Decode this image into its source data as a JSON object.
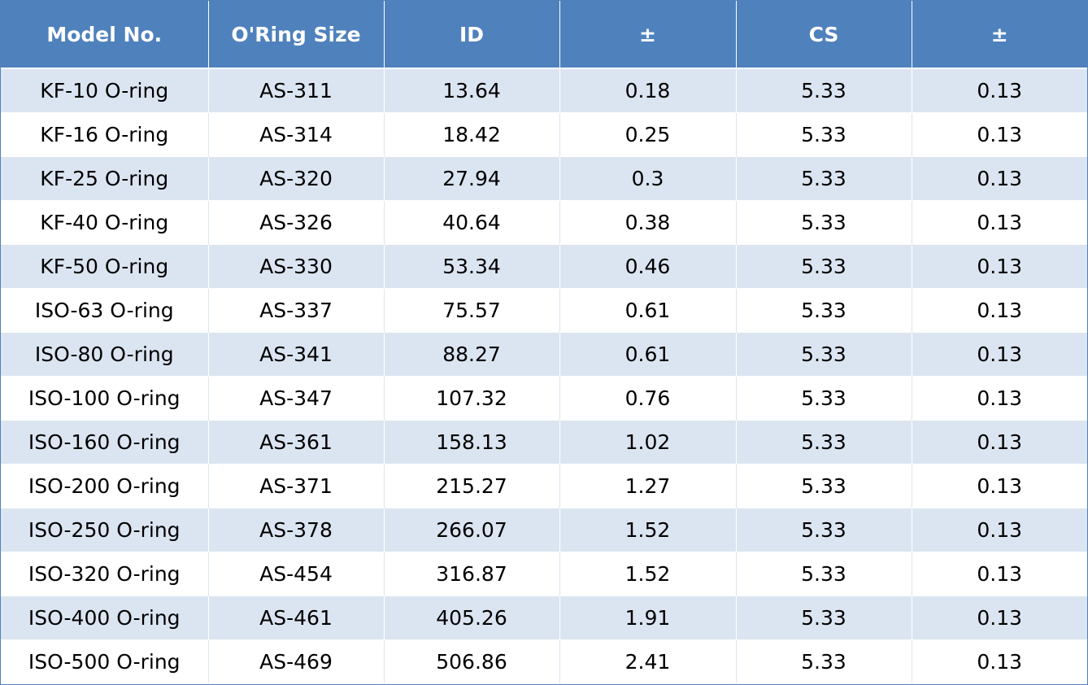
{
  "table": {
    "headers": [
      "Model No.",
      "O'Ring Size",
      "ID",
      "±",
      "CS",
      "±"
    ],
    "rows": [
      [
        "KF-10 O-ring",
        "AS-311",
        "13.64",
        "0.18",
        "5.33",
        "0.13"
      ],
      [
        "KF-16 O-ring",
        "AS-314",
        "18.42",
        "0.25",
        "5.33",
        "0.13"
      ],
      [
        "KF-25 O-ring",
        "AS-320",
        "27.94",
        "0.3",
        "5.33",
        "0.13"
      ],
      [
        "KF-40 O-ring",
        "AS-326",
        "40.64",
        "0.38",
        "5.33",
        "0.13"
      ],
      [
        "KF-50 O-ring",
        "AS-330",
        "53.34",
        "0.46",
        "5.33",
        "0.13"
      ],
      [
        "ISO-63 O-ring",
        "AS-337",
        "75.57",
        "0.61",
        "5.33",
        "0.13"
      ],
      [
        "ISO-80 O-ring",
        "AS-341",
        "88.27",
        "0.61",
        "5.33",
        "0.13"
      ],
      [
        "ISO-100 O-ring",
        "AS-347",
        "107.32",
        "0.76",
        "5.33",
        "0.13"
      ],
      [
        "ISO-160 O-ring",
        "AS-361",
        "158.13",
        "1.02",
        "5.33",
        "0.13"
      ],
      [
        "ISO-200 O-ring",
        "AS-371",
        "215.27",
        "1.27",
        "5.33",
        "0.13"
      ],
      [
        "ISO-250 O-ring",
        "AS-378",
        "266.07",
        "1.52",
        "5.33",
        "0.13"
      ],
      [
        "ISO-320 O-ring",
        "AS-454",
        "316.87",
        "1.52",
        "5.33",
        "0.13"
      ],
      [
        "ISO-400 O-ring",
        "AS-461",
        "405.26",
        "1.91",
        "5.33",
        "0.13"
      ],
      [
        "ISO-500 O-ring",
        "AS-469",
        "506.86",
        "2.41",
        "5.33",
        "0.13"
      ]
    ]
  },
  "colors": {
    "header_bg": "#4f81bd",
    "header_text": "#ffffff",
    "band_row": "#dbe5f1",
    "plain_row": "#ffffff"
  }
}
